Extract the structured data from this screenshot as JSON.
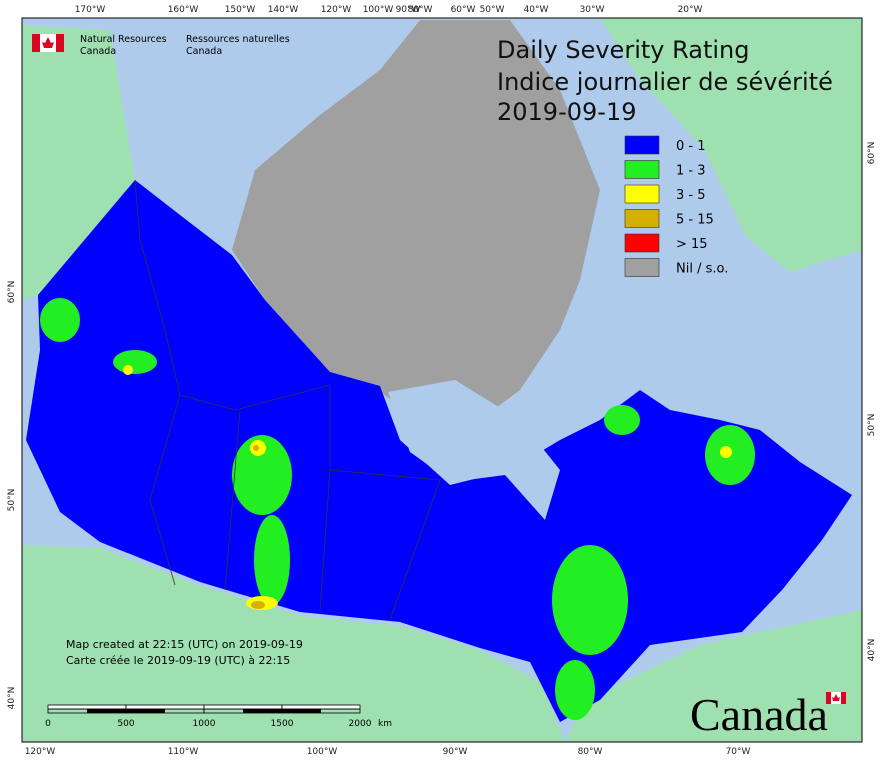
{
  "header": {
    "agency_en": [
      "Natural Resources",
      "Canada"
    ],
    "agency_fr": [
      "Ressources naturelles",
      "Canada"
    ]
  },
  "title": {
    "en": "Daily Severity Rating",
    "fr": "Indice journalier de sévérité",
    "date": "2019-09-19"
  },
  "legend": [
    {
      "label": "0 - 1",
      "color": "#0000ff"
    },
    {
      "label": "1 - 3",
      "color": "#22ee22"
    },
    {
      "label": "3 - 5",
      "color": "#ffff00"
    },
    {
      "label": "5 - 15",
      "color": "#d4b000"
    },
    {
      "label": "> 15",
      "color": "#ff0000"
    },
    {
      "label": "Nil / s.o.",
      "color": "#a0a0a0"
    }
  ],
  "graticule": {
    "top": [
      "170°W",
      "160°W",
      "150°W",
      "140°W",
      "120°W",
      "100°W",
      "90°W",
      "80°W",
      "60°W",
      "50°W",
      "40°W",
      "30°W",
      "20°W"
    ],
    "bottom": [
      "120°W",
      "110°W",
      "100°W",
      "90°W",
      "80°W",
      "70°W"
    ],
    "left": [
      "60°N",
      "50°N",
      "40°N"
    ],
    "right": [
      "60°N",
      "50°N",
      "40°N"
    ]
  },
  "footer": {
    "notes": [
      "Map created at 22:15 (UTC) on 2019-09-19",
      "Carte créée le 2019-09-19 (UTC) à 22:15"
    ],
    "scale": {
      "ticks": [
        "0",
        "500",
        "1000",
        "1500",
        "2000"
      ],
      "unit": "km"
    }
  },
  "wordmark": "Canada"
}
